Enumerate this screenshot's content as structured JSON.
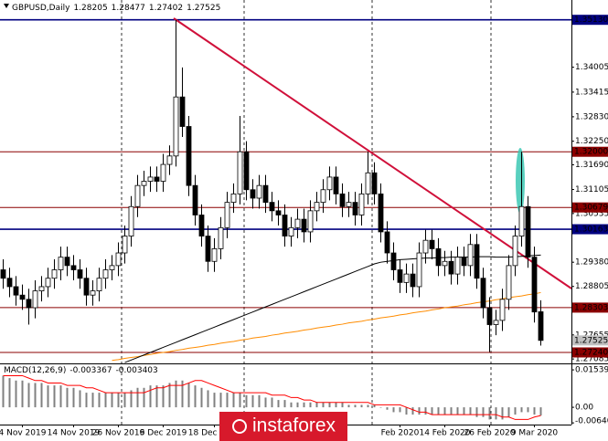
{
  "chart_data": {
    "type": "candlestick",
    "symbol": "GBPUSD,Daily",
    "categories": [
      null,
      null,
      null,
      "4 Nov 2019",
      null,
      null,
      null,
      null,
      null,
      null,
      null,
      "14 Nov 2019",
      null,
      null,
      null,
      null,
      null,
      null,
      "26 Nov 2019",
      null,
      null,
      null,
      null,
      null,
      null,
      "6 Dec 2019",
      null,
      null,
      null,
      null,
      null,
      null,
      null,
      "18 Dec 2019",
      null,
      null,
      null,
      null,
      null,
      null,
      null,
      null,
      null,
      null,
      null,
      null,
      null,
      null,
      null,
      null,
      null,
      null,
      null,
      null,
      null,
      null,
      null,
      null,
      null,
      null,
      null,
      null,
      "Feb 2020",
      null,
      null,
      null,
      null,
      null,
      null,
      "14 Feb 2020",
      null,
      null,
      null,
      null,
      null,
      null,
      "26 Feb 2020",
      null,
      null,
      null,
      null,
      null,
      null,
      "9 Mar 2020",
      null
    ],
    "open": [
      1.292,
      1.29,
      1.288,
      1.286,
      1.285,
      1.283,
      1.287,
      1.288,
      1.29,
      1.292,
      1.295,
      1.293,
      1.292,
      1.29,
      1.286,
      1.287,
      1.29,
      1.292,
      1.293,
      1.296,
      1.3,
      1.307,
      1.312,
      1.313,
      1.314,
      1.313,
      1.317,
      1.319,
      1.333,
      1.326,
      1.312,
      1.305,
      1.3,
      1.294,
      1.297,
      1.302,
      1.308,
      1.31,
      1.32,
      1.311,
      1.309,
      1.312,
      1.308,
      1.306,
      1.305,
      1.3,
      1.302,
      1.304,
      1.301,
      1.306,
      1.308,
      1.311,
      1.314,
      1.31,
      1.307,
      1.308,
      1.305,
      1.31,
      1.315,
      1.31,
      1.301,
      1.296,
      1.292,
      1.289,
      1.291,
      1.288,
      1.296,
      1.299,
      1.297,
      1.293,
      1.294,
      1.291,
      1.295,
      1.293,
      1.298,
      1.29,
      1.283,
      1.279,
      1.28,
      1.285,
      1.293,
      1.3,
      1.307,
      1.295,
      1.28205
    ],
    "high": [
      1.2945,
      1.2925,
      1.2905,
      1.2885,
      1.2875,
      1.2895,
      1.2905,
      1.2925,
      1.2945,
      1.2975,
      1.2975,
      1.2955,
      1.2945,
      1.2925,
      1.2895,
      1.2925,
      1.2945,
      1.2955,
      1.2985,
      1.3025,
      1.3095,
      1.3145,
      1.3155,
      1.3165,
      1.3165,
      1.3195,
      1.3215,
      1.3513,
      1.34,
      1.3285,
      1.3145,
      1.3075,
      1.3025,
      1.2995,
      1.3045,
      1.3105,
      1.3125,
      1.3285,
      1.3225,
      1.3135,
      1.3145,
      1.3145,
      1.3105,
      1.3085,
      1.3075,
      1.3045,
      1.3065,
      1.3065,
      1.3085,
      1.3105,
      1.3135,
      1.3165,
      1.3165,
      1.3125,
      1.3105,
      1.3105,
      1.3125,
      1.32,
      1.3175,
      1.3125,
      1.3035,
      1.2985,
      1.2945,
      1.2935,
      1.2935,
      1.2985,
      1.3015,
      1.3015,
      1.2995,
      1.2965,
      1.2965,
      1.2975,
      1.2975,
      1.3005,
      1.3005,
      1.2925,
      1.2855,
      1.2825,
      1.2875,
      1.2955,
      1.3025,
      1.32,
      1.3095,
      1.2975,
      1.28477
    ],
    "low": [
      1.2875,
      1.2855,
      1.2835,
      1.2825,
      1.279,
      1.2805,
      1.2845,
      1.2855,
      1.2875,
      1.2895,
      1.2905,
      1.2895,
      1.2875,
      1.2835,
      1.2835,
      1.2845,
      1.2875,
      1.2895,
      1.2905,
      1.2935,
      1.2975,
      1.3045,
      1.3095,
      1.3105,
      1.3105,
      1.3105,
      1.3145,
      1.3165,
      1.3235,
      1.3095,
      1.3025,
      1.2975,
      1.2915,
      1.2915,
      1.2945,
      1.2995,
      1.3055,
      1.3075,
      1.3085,
      1.3065,
      1.3065,
      1.3055,
      1.3035,
      1.3025,
      1.2975,
      1.2975,
      1.2995,
      1.2985,
      1.2985,
      1.3035,
      1.3055,
      1.3085,
      1.3075,
      1.3045,
      1.3045,
      1.3025,
      1.3025,
      1.3075,
      1.3075,
      1.2985,
      1.2935,
      1.2895,
      1.2865,
      1.2865,
      1.2855,
      1.2855,
      1.2935,
      1.2945,
      1.2905,
      1.2905,
      1.2885,
      1.2885,
      1.2905,
      1.2905,
      1.2875,
      1.2805,
      1.2725,
      1.2765,
      1.2775,
      1.2825,
      1.2905,
      1.2975,
      1.2925,
      1.2795,
      1.27402
    ],
    "close": [
      1.29,
      1.288,
      1.286,
      1.285,
      1.283,
      1.287,
      1.288,
      1.29,
      1.292,
      1.295,
      1.293,
      1.292,
      1.29,
      1.286,
      1.287,
      1.29,
      1.292,
      1.293,
      1.296,
      1.3,
      1.307,
      1.312,
      1.313,
      1.314,
      1.313,
      1.317,
      1.319,
      1.333,
      1.326,
      1.312,
      1.305,
      1.3,
      1.294,
      1.297,
      1.302,
      1.308,
      1.31,
      1.32,
      1.311,
      1.309,
      1.312,
      1.308,
      1.306,
      1.305,
      1.3,
      1.302,
      1.304,
      1.301,
      1.306,
      1.308,
      1.311,
      1.314,
      1.31,
      1.307,
      1.308,
      1.305,
      1.31,
      1.315,
      1.31,
      1.301,
      1.296,
      1.292,
      1.289,
      1.291,
      1.288,
      1.296,
      1.299,
      1.297,
      1.293,
      1.294,
      1.291,
      1.295,
      1.293,
      1.298,
      1.29,
      1.283,
      1.279,
      1.28,
      1.285,
      1.293,
      1.3,
      1.307,
      1.295,
      1.282,
      1.27525
    ],
    "up_color": "#ffffff",
    "down_color": "#000000",
    "ylim": [
      1.2698,
      1.356
    ],
    "yticks": [
      1.34005,
      1.33415,
      {
        "value": 1.3283,
        "label": "1.32830"
      },
      {
        "value": 1.3225,
        "label": "1.32250"
      },
      {
        "value": 1.3169,
        "label": "1.31690"
      },
      1.31105,
      1.30535,
      {
        "value": 1.2938,
        "label": "1.29380"
      },
      1.28805,
      1.27655,
      1.27085
    ],
    "levels": [
      {
        "value": 1.3513,
        "label": "1.35130",
        "color": "#000080",
        "text_color": "#ffffff",
        "line": true
      },
      {
        "value": 1.32,
        "label": "1.32000",
        "color": "#8b0000",
        "text_color": "#ffffff",
        "line": true
      },
      {
        "value": 1.30679,
        "color": "#8b0000",
        "text_color": "#ffffff",
        "line": true
      },
      {
        "value": 1.30163,
        "color": "#000080",
        "text_color": "#ffffff",
        "line": true
      },
      {
        "value": 1.28303,
        "color": "#8b0000",
        "text_color": "#ffffff",
        "line": true
      },
      {
        "value": 1.27525,
        "color": "#c0c0c0",
        "text_color": "#000000",
        "line": false
      },
      {
        "value": 1.2724,
        "label": "1.27240",
        "color": "#8b0000",
        "text_color": "#ffffff",
        "line": true
      }
    ],
    "lines": [
      {
        "color": "#ff8c00",
        "values": [
          null,
          null,
          null,
          null,
          null,
          null,
          null,
          null,
          null,
          null,
          null,
          null,
          null,
          null,
          null,
          null,
          null,
          1.2705,
          1.2707,
          1.271,
          1.2712,
          1.2714,
          1.2717,
          1.2719,
          1.2722,
          1.2724,
          1.2726,
          1.2729,
          1.2731,
          1.2734,
          1.2736,
          1.2738,
          1.2741,
          1.2743,
          1.2746,
          1.2748,
          1.275,
          1.2753,
          1.2755,
          1.2758,
          1.276,
          1.2762,
          1.2765,
          1.2767,
          1.277,
          1.2772,
          1.2774,
          1.2777,
          1.2779,
          1.2782,
          1.2784,
          1.2786,
          1.2789,
          1.2791,
          1.2794,
          1.2796,
          1.2798,
          1.2801,
          1.2803,
          1.2806,
          1.2808,
          1.281,
          1.2813,
          1.2815,
          1.2818,
          1.282,
          1.2822,
          1.2825,
          1.2827,
          1.283,
          1.2832,
          1.2834,
          1.2837,
          1.2839,
          1.2842,
          1.2844,
          1.2846,
          1.2849,
          1.2851,
          1.2854,
          1.2856,
          1.2858,
          1.2861,
          1.2863,
          1.2866
        ]
      },
      {
        "color": "#000000",
        "values": [
          null,
          null,
          null,
          null,
          null,
          null,
          null,
          null,
          null,
          null,
          null,
          null,
          null,
          null,
          null,
          null,
          null,
          null,
          null,
          1.27,
          1.2706,
          1.2712,
          1.2718,
          1.2724,
          1.273,
          1.2736,
          1.2742,
          1.2748,
          1.2754,
          1.276,
          1.2766,
          1.2772,
          1.2778,
          1.2784,
          1.279,
          1.2796,
          1.2802,
          1.2808,
          1.2814,
          1.282,
          1.2826,
          1.2832,
          1.2838,
          1.2844,
          1.285,
          1.2856,
          1.2862,
          1.2868,
          1.2874,
          1.288,
          1.2886,
          1.2892,
          1.2898,
          1.2904,
          1.291,
          1.2916,
          1.2922,
          1.2928,
          1.2934,
          1.2938,
          1.294,
          1.2942,
          1.2944,
          1.2945,
          1.2946,
          1.2947,
          1.2948,
          1.2948,
          1.2949,
          1.2949,
          1.295,
          1.295,
          1.295,
          1.295,
          1.2951,
          1.2951,
          1.2951,
          1.295,
          1.295,
          1.295,
          1.2951,
          1.2952,
          1.2953,
          1.2954,
          1.2955
        ]
      }
    ],
    "macd": {
      "title": "MACD(12,26,9)",
      "histogram": [
        0.013,
        0.012,
        0.011,
        0.011,
        0.01,
        0.01,
        0.01,
        0.009,
        0.009,
        0.009,
        0.008,
        0.008,
        0.007,
        0.006,
        0.006,
        0.006,
        0.006,
        0.006,
        0.006,
        0.006,
        0.007,
        0.008,
        0.008,
        0.009,
        0.009,
        0.009,
        0.01,
        0.011,
        0.011,
        0.01,
        0.009,
        0.008,
        0.007,
        0.006,
        0.006,
        0.006,
        0.006,
        0.006,
        0.005,
        0.005,
        0.005,
        0.004,
        0.004,
        0.003,
        0.003,
        0.002,
        0.002,
        0.002,
        0.002,
        0.002,
        0.002,
        0.002,
        0.002,
        0.002,
        0.001,
        0.001,
        0.001,
        0.001,
        0.001,
        0.0,
        -0.001,
        -0.002,
        -0.002,
        -0.003,
        -0.003,
        -0.003,
        -0.003,
        -0.003,
        -0.003,
        -0.003,
        -0.003,
        -0.003,
        -0.003,
        -0.003,
        -0.004,
        -0.004,
        -0.005,
        -0.005,
        -0.005,
        -0.004,
        -0.003,
        -0.002,
        -0.002,
        -0.003,
        -0.003367
      ],
      "histogram_color": "#808080",
      "signal": [
        0.013,
        0.013,
        0.013,
        0.013,
        0.012,
        0.011,
        0.011,
        0.01,
        0.01,
        0.01,
        0.009,
        0.009,
        0.009,
        0.008,
        0.008,
        0.007,
        0.006,
        0.006,
        0.006,
        0.006,
        0.006,
        0.006,
        0.006,
        0.007,
        0.008,
        0.008,
        0.009,
        0.009,
        0.009,
        0.01,
        0.011,
        0.011,
        0.01,
        0.009,
        0.008,
        0.007,
        0.006,
        0.006,
        0.006,
        0.006,
        0.006,
        0.006,
        0.005,
        0.005,
        0.005,
        0.004,
        0.004,
        0.003,
        0.003,
        0.002,
        0.002,
        0.002,
        0.002,
        0.002,
        0.002,
        0.002,
        0.002,
        0.002,
        0.001,
        0.001,
        0.001,
        0.001,
        0.001,
        0.0,
        -0.001,
        -0.002,
        -0.002,
        -0.003,
        -0.003,
        -0.003,
        -0.003,
        -0.003,
        -0.003,
        -0.003,
        -0.003,
        -0.003,
        -0.003,
        -0.003,
        -0.004,
        -0.004,
        -0.005,
        -0.005,
        -0.005,
        -0.004,
        -0.003403
      ],
      "signal_color": "#ff0000",
      "ylim": [
        -0.0071,
        0.0173
      ],
      "yticks": [
        0.01539,
        {
          "value": 0,
          "label": "0.00"
        },
        -0.006405
      ]
    },
    "watermark": "instaforex"
  }
}
